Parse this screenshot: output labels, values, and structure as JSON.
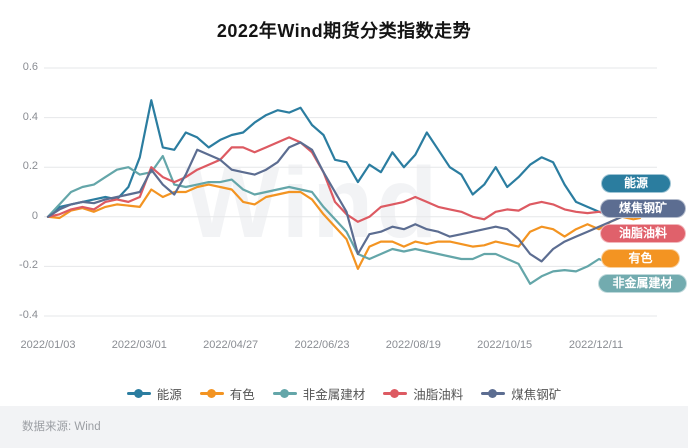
{
  "title": "2022年Wind期货分类指数走势",
  "watermark": "Wind",
  "footer": {
    "source": "数据来源: Wind"
  },
  "badges": [
    {
      "label": "能源",
      "color": "#2b7d9f"
    },
    {
      "label": "煤焦钢矿",
      "color": "#5c6d91"
    },
    {
      "label": "油脂油料",
      "color": "#e0616b"
    },
    {
      "label": "有色",
      "color": "#f39422"
    },
    {
      "label": "非金属建材",
      "color": "#72abaf"
    }
  ],
  "legend": [
    {
      "label": "能源",
      "color": "#2b7da0"
    },
    {
      "label": "有色",
      "color": "#f39422"
    },
    {
      "label": "非金属建材",
      "color": "#64a6a9"
    },
    {
      "label": "油脂油料",
      "color": "#dd5a62"
    },
    {
      "label": "煤焦钢矿",
      "color": "#5c6d91"
    }
  ],
  "chart_data": {
    "type": "line",
    "title": "2022年Wind期货分类指数走势",
    "xlabel": "",
    "ylabel": "",
    "grid": "horizontal",
    "legend_position": "bottom",
    "ylim": [
      -0.4,
      0.6
    ],
    "y_ticks": [
      0.6,
      0.4,
      0.2,
      0,
      -0.2,
      -0.4
    ],
    "y_tick_labels": [
      "0.6",
      "0.4",
      "0.2",
      "0",
      "-0.2",
      "-0.4"
    ],
    "x_tick_labels": [
      "2022/01/03",
      "2022/03/01",
      "2022/04/27",
      "2022/06/23",
      "2022/08/19",
      "2022/10/15",
      "2022/12/11"
    ],
    "x_dates": [
      "2022-01-03",
      "2022-01-10",
      "2022-01-17",
      "2022-01-24",
      "2022-01-31",
      "2022-02-07",
      "2022-02-14",
      "2022-02-21",
      "2022-02-28",
      "2022-03-07",
      "2022-03-14",
      "2022-03-21",
      "2022-03-28",
      "2022-04-04",
      "2022-04-11",
      "2022-04-18",
      "2022-04-25",
      "2022-05-02",
      "2022-05-09",
      "2022-05-16",
      "2022-05-23",
      "2022-05-30",
      "2022-06-06",
      "2022-06-13",
      "2022-06-20",
      "2022-06-27",
      "2022-07-04",
      "2022-07-11",
      "2022-07-18",
      "2022-07-25",
      "2022-08-01",
      "2022-08-08",
      "2022-08-15",
      "2022-08-22",
      "2022-08-29",
      "2022-09-05",
      "2022-09-12",
      "2022-09-19",
      "2022-09-26",
      "2022-10-03",
      "2022-10-10",
      "2022-10-17",
      "2022-10-24",
      "2022-10-31",
      "2022-11-07",
      "2022-11-14",
      "2022-11-21",
      "2022-11-28",
      "2022-12-05",
      "2022-12-12",
      "2022-12-19",
      "2022-12-26",
      "2022-12-30"
    ],
    "series": [
      {
        "name": "能源",
        "color": "#2b7da0",
        "values": [
          0,
          0.04,
          0.05,
          0.06,
          0.07,
          0.08,
          0.07,
          0.12,
          0.24,
          0.47,
          0.28,
          0.27,
          0.34,
          0.32,
          0.28,
          0.31,
          0.33,
          0.34,
          0.38,
          0.41,
          0.43,
          0.42,
          0.44,
          0.37,
          0.33,
          0.23,
          0.22,
          0.14,
          0.21,
          0.18,
          0.26,
          0.2,
          0.25,
          0.34,
          0.27,
          0.2,
          0.17,
          0.09,
          0.13,
          0.2,
          0.12,
          0.16,
          0.21,
          0.24,
          0.22,
          0.13,
          0.06,
          0.04,
          0.02,
          0.01,
          0.02,
          0.01,
          0.03
        ]
      },
      {
        "name": "有色",
        "color": "#f39422",
        "values": [
          0,
          -0.005,
          0.025,
          0.035,
          0.02,
          0.04,
          0.05,
          0.045,
          0.04,
          0.11,
          0.08,
          0.1,
          0.1,
          0.12,
          0.13,
          0.12,
          0.11,
          0.06,
          0.05,
          0.08,
          0.09,
          0.1,
          0.1,
          0.07,
          0.01,
          -0.04,
          -0.09,
          -0.21,
          -0.12,
          -0.1,
          -0.1,
          -0.12,
          -0.1,
          -0.11,
          -0.1,
          -0.1,
          -0.11,
          -0.12,
          -0.115,
          -0.1,
          -0.11,
          -0.12,
          -0.06,
          -0.04,
          -0.05,
          -0.08,
          -0.05,
          -0.03,
          -0.05,
          -0.02,
          0,
          -0.01,
          -0.005
        ]
      },
      {
        "name": "非金属建材",
        "color": "#64a6a9",
        "values": [
          0,
          0.05,
          0.1,
          0.12,
          0.13,
          0.16,
          0.19,
          0.2,
          0.17,
          0.18,
          0.245,
          0.13,
          0.12,
          0.13,
          0.14,
          0.14,
          0.15,
          0.11,
          0.09,
          0.1,
          0.11,
          0.12,
          0.11,
          0.1,
          0.04,
          -0.01,
          -0.06,
          -0.15,
          -0.17,
          -0.15,
          -0.13,
          -0.14,
          -0.13,
          -0.14,
          -0.15,
          -0.16,
          -0.17,
          -0.17,
          -0.15,
          -0.15,
          -0.17,
          -0.19,
          -0.27,
          -0.24,
          -0.22,
          -0.215,
          -0.22,
          -0.2,
          -0.17,
          -0.19,
          -0.2,
          -0.19,
          -0.17
        ]
      },
      {
        "name": "油脂油料",
        "color": "#dd5a62",
        "values": [
          0,
          0.01,
          0.03,
          0.04,
          0.03,
          0.06,
          0.07,
          0.06,
          0.08,
          0.2,
          0.16,
          0.14,
          0.16,
          0.19,
          0.21,
          0.23,
          0.28,
          0.28,
          0.26,
          0.28,
          0.3,
          0.32,
          0.3,
          0.26,
          0.18,
          0.06,
          0.01,
          -0.02,
          0,
          0.04,
          0.05,
          0.06,
          0.08,
          0.06,
          0.04,
          0.03,
          0.02,
          0,
          -0.01,
          0.02,
          0.03,
          0.025,
          0.05,
          0.06,
          0.05,
          0.03,
          0.02,
          0.015,
          0.02,
          0.01,
          0.015,
          0.02,
          0.02
        ]
      },
      {
        "name": "煤焦钢矿",
        "color": "#5c6d91",
        "values": [
          0,
          0.03,
          0.05,
          0.06,
          0.055,
          0.07,
          0.08,
          0.09,
          0.1,
          0.19,
          0.13,
          0.09,
          0.17,
          0.27,
          0.25,
          0.23,
          0.19,
          0.18,
          0.17,
          0.19,
          0.22,
          0.28,
          0.3,
          0.27,
          0.18,
          0.1,
          0.02,
          -0.15,
          -0.07,
          -0.06,
          -0.04,
          -0.05,
          -0.03,
          -0.05,
          -0.06,
          -0.08,
          -0.07,
          -0.06,
          -0.05,
          -0.04,
          -0.05,
          -0.09,
          -0.15,
          -0.18,
          -0.13,
          -0.1,
          -0.08,
          -0.06,
          -0.04,
          -0.02,
          0,
          0,
          0.01
        ]
      }
    ]
  }
}
